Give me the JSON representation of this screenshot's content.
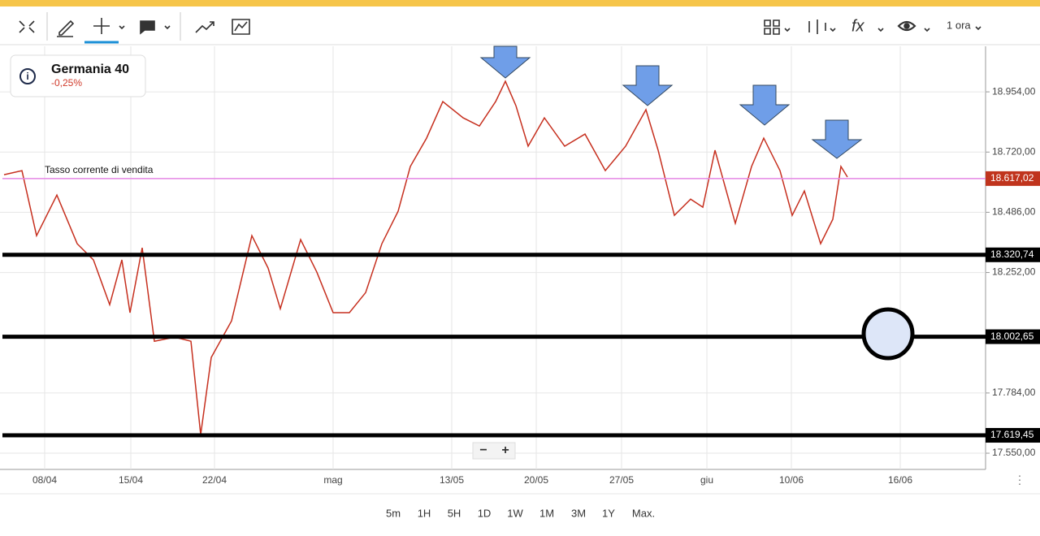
{
  "toolbar": {
    "timeframe": "1 ora"
  },
  "instrument": {
    "name": "Germania 40",
    "change": "-0,25%"
  },
  "chart": {
    "current_rate_label": "Tasso corrente di vendita",
    "ylim": [
      17487,
      19131
    ],
    "yticks": [
      {
        "value": 18954,
        "label": "18.954,00"
      },
      {
        "value": 18720,
        "label": "18.720,00"
      },
      {
        "value": 18486,
        "label": "18.486,00"
      },
      {
        "value": 18252,
        "label": "18.252,00"
      },
      {
        "value": 17784,
        "label": "17.784,00"
      },
      {
        "value": 17550,
        "label": "17.550,00"
      }
    ],
    "levels": [
      {
        "value": 18617.02,
        "label": "18.617,02",
        "color": "#e486e4",
        "tag": "#c0341d"
      },
      {
        "value": 18320.74,
        "label": "18.320,74",
        "color": "#000000",
        "tag": "#000000"
      },
      {
        "value": 18002.65,
        "label": "18.002,65",
        "color": "#000000",
        "tag": "#000000"
      },
      {
        "value": 17619.45,
        "label": "17.619,45",
        "color": "#000000",
        "tag": "#000000"
      }
    ],
    "xlabels": [
      "08/04",
      "15/04",
      "22/04",
      "mag",
      "13/05",
      "20/05",
      "27/05",
      "giu",
      "10/06",
      "16/06"
    ],
    "price": {
      "color": "#c62f1e",
      "values": [
        18632,
        18648,
        18395,
        18553,
        18364,
        18301,
        18127,
        18301,
        18096,
        18348,
        17985,
        18001,
        17985,
        17622,
        17922,
        18064,
        18395,
        18269,
        18111,
        18380,
        18253,
        18096,
        18096,
        18174,
        18364,
        18490,
        18664,
        18774,
        18916,
        18853,
        18821,
        18916,
        18995,
        18900,
        18743,
        18853,
        18743,
        18790,
        18648,
        18743,
        18885,
        18727,
        18474,
        18537,
        18506,
        18727,
        18443,
        18664,
        18774,
        18648,
        18474,
        18569,
        18364,
        18459,
        18664,
        18623
      ]
    }
  },
  "zoom": [
    "−",
    "+"
  ],
  "periods": [
    "5m",
    "1H",
    "5H",
    "1D",
    "1W",
    "1M",
    "3M",
    "1Y",
    "Max."
  ]
}
